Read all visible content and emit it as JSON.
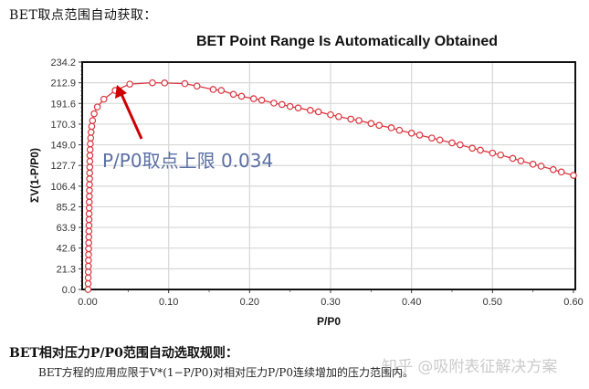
{
  "page": {
    "heading_top": "BET取点范围自动获取：",
    "heading_bottom": "BET相对压力P/P0范围自动选取规则：",
    "body_line": "BET方程的应用应限于V*(1−P/P0)对相对压力P/P0连续增加的压力范围内。",
    "watermark": "知乎 @吸附表征解决方案",
    "annotation": "P/P0取点上限 0.034"
  },
  "colors": {
    "series": "#d9363e",
    "arrow": "#cc0000",
    "annotation": "#5a6fa3",
    "grid": "#d8d8d8",
    "axis": "#111111"
  },
  "chart_data": {
    "type": "line",
    "title": "BET Point Range Is Automatically Obtained",
    "xlabel": "P/P0",
    "ylabel": "ΣV(1-P/P0)",
    "xlim": [
      -0.01,
      0.605
    ],
    "ylim": [
      0.0,
      234.2
    ],
    "grid": true,
    "legend": null,
    "x_ticks": [
      "0.00",
      "0.10",
      "0.20",
      "0.30",
      "0.40",
      "0.50",
      "0.60"
    ],
    "y_ticks": [
      "0.0",
      "21.3",
      "42.6",
      "63.9",
      "85.2",
      "106.4",
      "127.7",
      "149.0",
      "170.3",
      "191.6",
      "212.9",
      "234.2"
    ],
    "annotation": {
      "text": "P/P0取点上限 0.034",
      "arrow_to": [
        0.034,
        212.9
      ]
    },
    "series": [
      {
        "name": "ΣV(1-P/P0)",
        "marker": "open-circle",
        "x": [
          0.0005,
          0.0006,
          0.0007,
          0.0008,
          0.0009,
          0.001,
          0.0011,
          0.0012,
          0.0013,
          0.0014,
          0.0015,
          0.0016,
          0.0017,
          0.0018,
          0.0019,
          0.002,
          0.0021,
          0.0022,
          0.0023,
          0.0024,
          0.0025,
          0.0026,
          0.0027,
          0.0028,
          0.003,
          0.0033,
          0.0037,
          0.0042,
          0.005,
          0.006,
          0.008,
          0.012,
          0.02,
          0.034,
          0.052,
          0.08,
          0.095,
          0.12,
          0.135,
          0.155,
          0.165,
          0.18,
          0.19,
          0.205,
          0.215,
          0.23,
          0.24,
          0.25,
          0.26,
          0.275,
          0.285,
          0.3,
          0.31,
          0.325,
          0.335,
          0.35,
          0.36,
          0.375,
          0.385,
          0.4,
          0.41,
          0.425,
          0.435,
          0.45,
          0.46,
          0.475,
          0.485,
          0.5,
          0.51,
          0.525,
          0.535,
          0.55,
          0.56,
          0.575,
          0.585,
          0.6
        ],
        "y": [
          0.0,
          6.0,
          12.0,
          18.0,
          24.0,
          30.0,
          36.0,
          42.0,
          48.0,
          54.0,
          60.0,
          66.0,
          72.0,
          78.0,
          84.0,
          90.0,
          96.0,
          102.0,
          108.0,
          114.0,
          120.0,
          126.0,
          132.0,
          138.0,
          144.0,
          150.0,
          156.0,
          162.0,
          168.0,
          174.0,
          181.0,
          188.0,
          196.0,
          205.0,
          211.5,
          212.9,
          212.7,
          212.0,
          209.5,
          206.0,
          205.0,
          201.0,
          199.0,
          196.5,
          195.0,
          192.0,
          190.5,
          188.5,
          187.0,
          184.5,
          183.0,
          180.0,
          178.0,
          175.5,
          174.0,
          171.0,
          169.0,
          166.5,
          164.0,
          161.0,
          159.0,
          156.0,
          154.0,
          151.0,
          149.0,
          145.5,
          143.5,
          140.5,
          138.5,
          135.0,
          132.5,
          129.0,
          127.0,
          123.5,
          121.0,
          117.5
        ]
      }
    ]
  }
}
